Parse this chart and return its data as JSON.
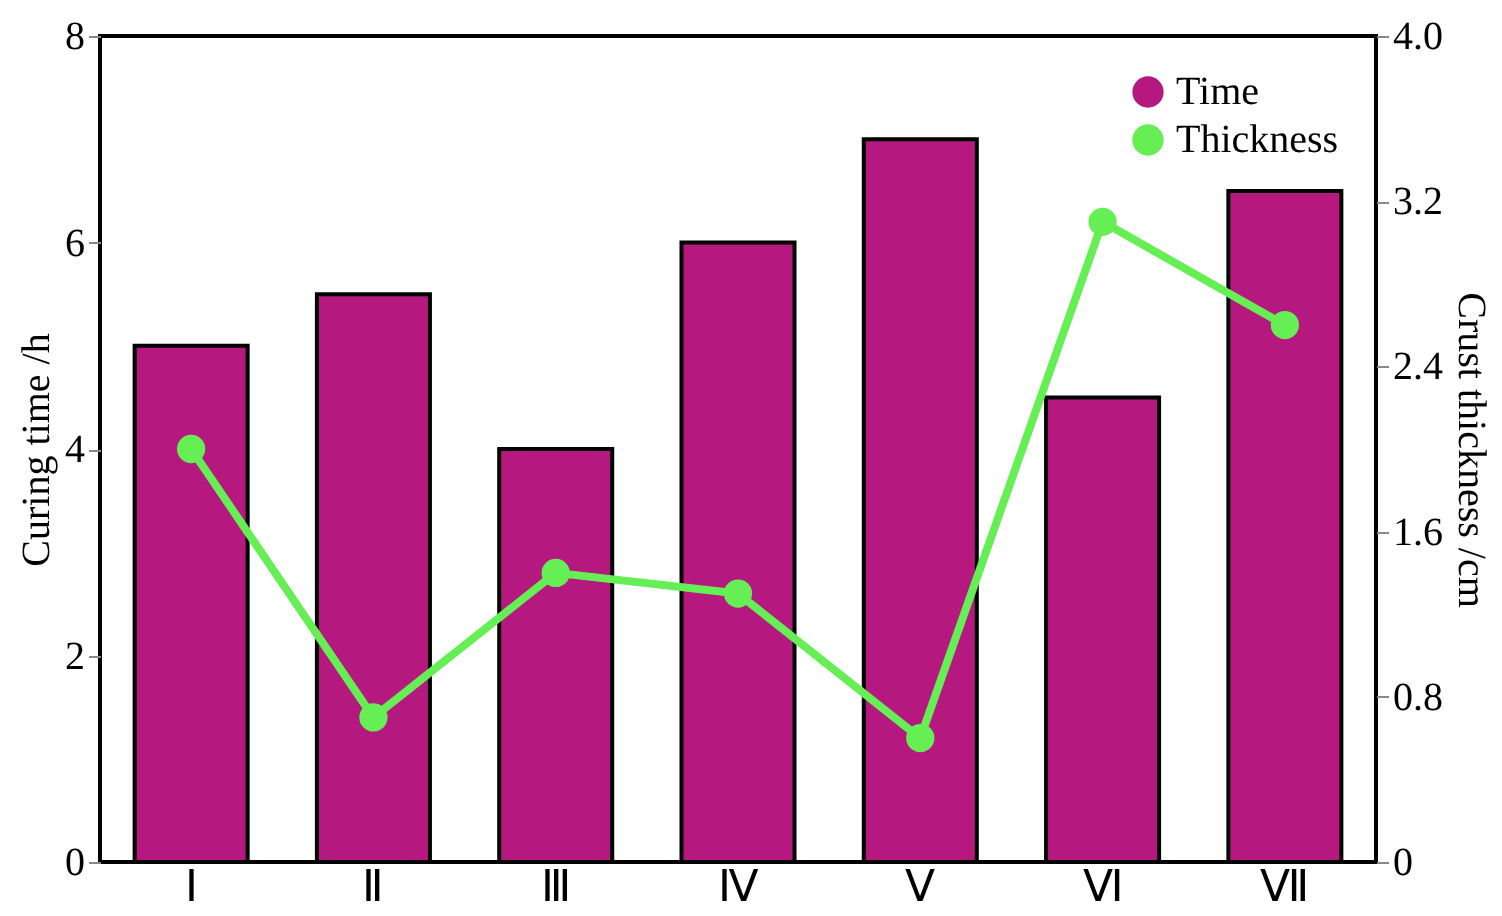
{
  "chart_data": {
    "type": "bar",
    "ylabel": "Curing time /h",
    "y2label": "Crust thickness /cm",
    "categories": [
      "Ⅰ",
      "Ⅱ",
      "Ⅲ",
      "Ⅳ",
      "Ⅴ",
      "Ⅵ",
      "Ⅶ"
    ],
    "series": [
      {
        "name": "Time",
        "color": "#b5197f",
        "values": [
          5,
          5.5,
          4,
          6,
          7,
          4.5,
          6.5
        ]
      },
      {
        "name": "Thickness",
        "type": "line",
        "axis": "y2",
        "color": "#66ee55",
        "marker": "circle",
        "line_style": "solid",
        "values": [
          2.0,
          0.7,
          1.4,
          1.3,
          0.6,
          3.1,
          2.6
        ]
      }
    ],
    "ylim": [
      0,
      8
    ],
    "yticks": [
      0,
      2,
      4,
      6,
      8
    ],
    "y2lim": [
      0,
      4
    ],
    "y2ticks": [
      0,
      0.8,
      1.6,
      2.4,
      3.2,
      {
        "value": 4,
        "label": "4.0"
      }
    ],
    "grid": false,
    "legend": "top right"
  }
}
